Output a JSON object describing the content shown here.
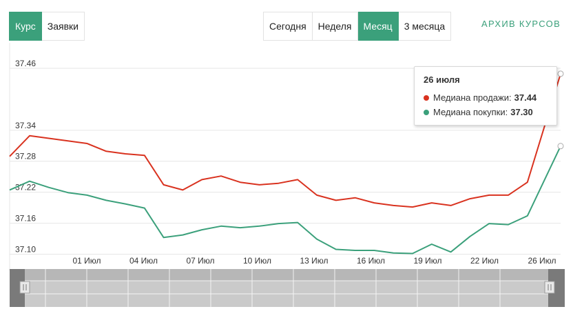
{
  "tabs": [
    {
      "label": "Курс",
      "active": true
    },
    {
      "label": "Заявки",
      "active": false
    }
  ],
  "periods": [
    {
      "label": "Сегодня",
      "active": false
    },
    {
      "label": "Неделя",
      "active": false
    },
    {
      "label": "Месяц",
      "active": true
    },
    {
      "label": "3 месяца",
      "active": false
    }
  ],
  "archive_link": "АРХИВ КУРСОВ",
  "colors": {
    "accent": "#3ba07b",
    "sell": "#d9321f",
    "buy": "#3ba07b"
  },
  "tooltip": {
    "date": "26 июля",
    "sell_label": "Медиана продажи:",
    "sell_value": "37.44",
    "buy_label": "Медиана покупки:",
    "buy_value": "37.30"
  },
  "chart_data": {
    "type": "line",
    "ylim": [
      37.07,
      37.5
    ],
    "y_ticks": [
      "37.10",
      "37.16",
      "37.22",
      "37.28",
      "37.34",
      "37.46"
    ],
    "x_ticks": [
      "01 Июл",
      "04 Июл",
      "07 Июл",
      "10 Июл",
      "13 Июл",
      "16 Июл",
      "19 Июл",
      "22 Июл",
      "26 Июл"
    ],
    "x": [
      -0.8,
      0,
      1,
      2,
      3,
      4,
      5,
      6,
      7,
      8,
      9,
      10,
      11,
      12,
      13,
      14,
      15,
      16,
      17,
      18,
      19,
      20,
      21,
      22,
      23,
      24,
      25,
      26,
      26.2
    ],
    "series": [
      {
        "name": "Медиана продажи",
        "color": "#d9321f",
        "values": [
          37.28,
          37.32,
          37.315,
          37.31,
          37.305,
          37.29,
          37.285,
          37.282,
          37.225,
          37.215,
          37.235,
          37.242,
          37.23,
          37.225,
          37.228,
          37.235,
          37.205,
          37.195,
          37.2,
          37.19,
          37.185,
          37.182,
          37.19,
          37.185,
          37.198,
          37.205,
          37.205,
          37.23,
          37.44
        ]
      },
      {
        "name": "Медиана покупки",
        "color": "#3ba07b",
        "values": [
          37.215,
          37.232,
          37.22,
          37.21,
          37.205,
          37.195,
          37.188,
          37.18,
          37.123,
          37.128,
          37.138,
          37.145,
          37.142,
          37.145,
          37.15,
          37.152,
          37.12,
          37.1,
          37.098,
          37.098,
          37.093,
          37.092,
          37.11,
          37.095,
          37.125,
          37.15,
          37.148,
          37.165,
          37.3
        ]
      }
    ],
    "highlight_index": 28
  }
}
